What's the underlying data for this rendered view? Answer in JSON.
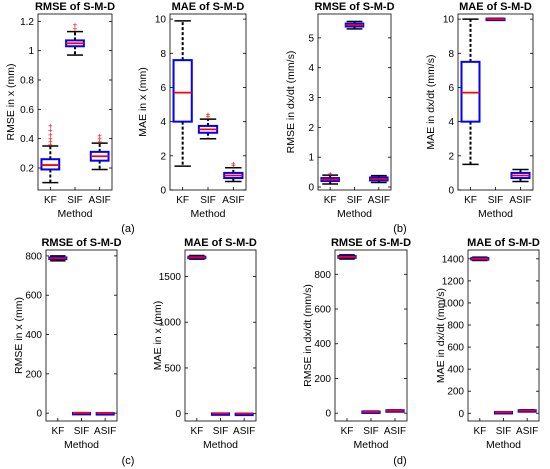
{
  "colors": {
    "box": "#0000ff",
    "median": "#ff0000",
    "whisker": "#000000",
    "outlier": "#ff0000",
    "axis": "#000000"
  },
  "panel_labels": [
    "(a)",
    "(b)",
    "(c)",
    "(d)"
  ],
  "chart_data": [
    {
      "type": "boxplot",
      "title": "RMSE of S-M-D",
      "xlabel": "Method",
      "ylabel": "RMSE in x (mm)",
      "categories": [
        "KF",
        "SIF",
        "ASIF"
      ],
      "ylim": [
        0.05,
        1.25
      ],
      "yticks": [
        0.2,
        0.4,
        0.6,
        0.8,
        1,
        1.2
      ],
      "ytick_labels": [
        "0.2",
        "0.4",
        "0.6",
        "0.8",
        "1",
        "1.2"
      ],
      "boxes": [
        {
          "q1": 0.19,
          "median": 0.22,
          "q3": 0.26,
          "wlo": 0.1,
          "whi": 0.35,
          "outliers": [
            0.36,
            0.38,
            0.4,
            0.43,
            0.46,
            0.49
          ]
        },
        {
          "q1": 1.03,
          "median": 1.05,
          "q3": 1.07,
          "wlo": 0.97,
          "whi": 1.13,
          "outliers": [
            1.15,
            1.18
          ]
        },
        {
          "q1": 0.25,
          "median": 0.28,
          "q3": 0.31,
          "wlo": 0.19,
          "whi": 0.37,
          "outliers": [
            0.38,
            0.4,
            0.42
          ]
        }
      ]
    },
    {
      "type": "boxplot",
      "title": "MAE of S-M-D",
      "xlabel": "Method",
      "ylabel": "MAE in x (mm)",
      "categories": [
        "KF",
        "SIF",
        "ASIF"
      ],
      "ylim": [
        0,
        10.3
      ],
      "yticks": [
        0,
        2,
        4,
        6,
        8,
        10
      ],
      "ytick_labels": [
        "0",
        "2",
        "4",
        "6",
        "8",
        "10"
      ],
      "boxes": [
        {
          "q1": 4,
          "median": 5.7,
          "q3": 7.6,
          "wlo": 1.4,
          "whi": 9.9,
          "outliers": []
        },
        {
          "q1": 3.35,
          "median": 3.55,
          "q3": 3.75,
          "wlo": 3.0,
          "whi": 4.15,
          "outliers": [
            4.3,
            4.45
          ]
        },
        {
          "q1": 0.7,
          "median": 0.85,
          "q3": 1.0,
          "wlo": 0.5,
          "whi": 1.3,
          "outliers": [
            1.45,
            1.55
          ]
        }
      ]
    },
    {
      "type": "boxplot",
      "title": "RMSE of S-M-D",
      "xlabel": "Method",
      "ylabel": "RMSE in dx/dt (mm/s)",
      "categories": [
        "KF",
        "SIF",
        "ASIF"
      ],
      "ylim": [
        -0.1,
        5.8
      ],
      "yticks": [
        0,
        1,
        2,
        3,
        4,
        5
      ],
      "ytick_labels": [
        "0",
        "1",
        "2",
        "3",
        "4",
        "5"
      ],
      "boxes": [
        {
          "q1": 0.2,
          "median": 0.25,
          "q3": 0.3,
          "wlo": 0.1,
          "whi": 0.4,
          "outliers": [
            0.45
          ]
        },
        {
          "q1": 5.38,
          "median": 5.43,
          "q3": 5.48,
          "wlo": 5.3,
          "whi": 5.55,
          "outliers": []
        },
        {
          "q1": 0.22,
          "median": 0.27,
          "q3": 0.32,
          "wlo": 0.15,
          "whi": 0.38,
          "outliers": []
        }
      ]
    },
    {
      "type": "boxplot",
      "title": "MAE of S-M-D",
      "xlabel": "Method",
      "ylabel": "MAE in dx/dt (mm/s)",
      "categories": [
        "KF",
        "SIF",
        "ASIF"
      ],
      "ylim": [
        0,
        10.3
      ],
      "yticks": [
        0,
        2,
        4,
        6,
        8,
        10
      ],
      "ytick_labels": [
        "0",
        "2",
        "4",
        "6",
        "8",
        "10"
      ],
      "boxes": [
        {
          "q1": 4,
          "median": 5.7,
          "q3": 7.5,
          "wlo": 1.5,
          "whi": 10,
          "outliers": []
        },
        {
          "q1": 9.97,
          "median": 10,
          "q3": 10.03,
          "wlo": 9.95,
          "whi": 10.05,
          "outliers": []
        },
        {
          "q1": 0.7,
          "median": 0.85,
          "q3": 1.0,
          "wlo": 0.5,
          "whi": 1.2,
          "outliers": []
        }
      ]
    },
    {
      "type": "boxplot",
      "title": "RMSE of S-M-D",
      "xlabel": "Method",
      "ylabel": "RMSE in x (mm)",
      "categories": [
        "KF",
        "SIF",
        "ASIF"
      ],
      "ylim": [
        -40,
        830
      ],
      "yticks": [
        0,
        200,
        400,
        600,
        800
      ],
      "ytick_labels": [
        "0",
        "200",
        "400",
        "600",
        "800"
      ],
      "boxes": [
        {
          "q1": 784,
          "median": 788,
          "q3": 792,
          "wlo": 775,
          "whi": 800,
          "outliers": []
        },
        {
          "q1": 0.8,
          "median": 1.05,
          "q3": 1.3,
          "wlo": 0.5,
          "whi": 1.6,
          "outliers": []
        },
        {
          "q1": 0.2,
          "median": 0.28,
          "q3": 0.35,
          "wlo": 0.1,
          "whi": 0.45,
          "outliers": []
        }
      ]
    },
    {
      "type": "boxplot",
      "title": "MAE of S-M-D",
      "xlabel": "Method",
      "ylabel": "MAE in x (mm)",
      "categories": [
        "KF",
        "SIF",
        "ASIF"
      ],
      "ylim": [
        -80,
        1790
      ],
      "yticks": [
        0,
        500,
        1000,
        1500
      ],
      "ytick_labels": [
        "0",
        "500",
        "1000",
        "1500"
      ],
      "boxes": [
        {
          "q1": 1703,
          "median": 1710,
          "q3": 1717,
          "wlo": 1690,
          "whi": 1730,
          "outliers": []
        },
        {
          "q1": 3.3,
          "median": 3.55,
          "q3": 3.8,
          "wlo": 3.0,
          "whi": 4.2,
          "outliers": []
        },
        {
          "q1": 0.7,
          "median": 0.85,
          "q3": 1.0,
          "wlo": 0.5,
          "whi": 1.3,
          "outliers": []
        }
      ]
    },
    {
      "type": "boxplot",
      "title": "RMSE of S-M-D",
      "xlabel": "Method",
      "ylabel": "RMSE in dx/dt (mm/s)",
      "categories": [
        "KF",
        "SIF",
        "ASIF"
      ],
      "ylim": [
        -45,
        940
      ],
      "yticks": [
        0,
        200,
        400,
        600,
        800
      ],
      "ytick_labels": [
        "0",
        "200",
        "400",
        "600",
        "800"
      ],
      "boxes": [
        {
          "q1": 895,
          "median": 900,
          "q3": 905,
          "wlo": 888,
          "whi": 912,
          "outliers": []
        },
        {
          "q1": 6,
          "median": 8,
          "q3": 10,
          "wlo": 4,
          "whi": 12,
          "outliers": []
        },
        {
          "q1": 13,
          "median": 15,
          "q3": 17,
          "wlo": 11,
          "whi": 19,
          "outliers": []
        }
      ]
    },
    {
      "type": "boxplot",
      "title": "MAE of S-M-D",
      "xlabel": "Method",
      "ylabel": "MAE in dx/dt (mm/s)",
      "categories": [
        "KF",
        "SIF",
        "ASIF"
      ],
      "ylim": [
        -70,
        1480
      ],
      "yticks": [
        0,
        200,
        400,
        600,
        800,
        1000,
        1200,
        1400
      ],
      "ytick_labels": [
        "0",
        "200",
        "400",
        "600",
        "800",
        "1000",
        "1200",
        "1400"
      ],
      "boxes": [
        {
          "q1": 1393,
          "median": 1400,
          "q3": 1407,
          "wlo": 1385,
          "whi": 1415,
          "outliers": []
        },
        {
          "q1": 8,
          "median": 10,
          "q3": 12,
          "wlo": 6,
          "whi": 14,
          "outliers": []
        },
        {
          "q1": 22,
          "median": 25,
          "q3": 28,
          "wlo": 18,
          "whi": 32,
          "outliers": []
        }
      ]
    }
  ]
}
